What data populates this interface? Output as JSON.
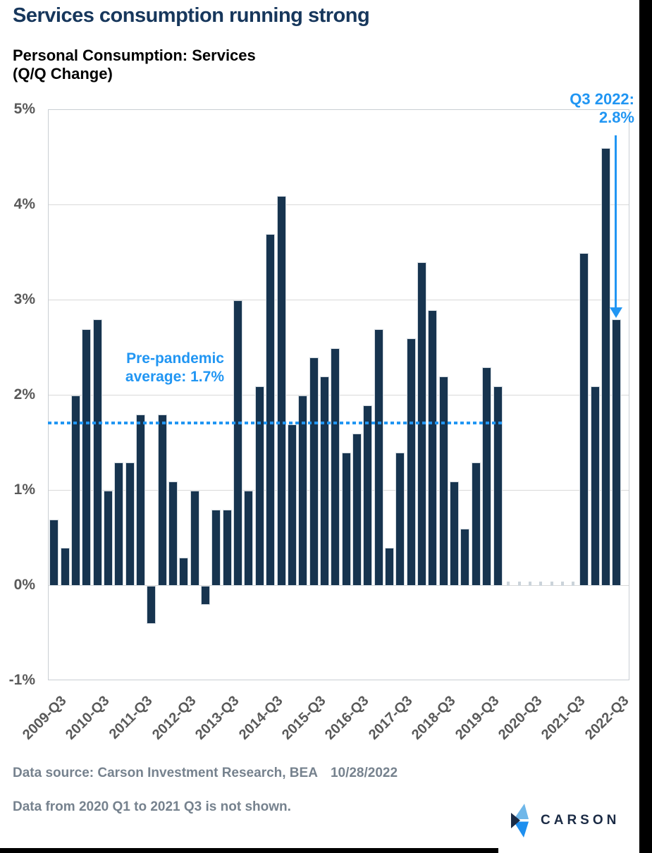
{
  "page": {
    "title": "Services consumption running strong",
    "subtitle": "Personal Consumption: Services\n(Q/Q Change)"
  },
  "colors": {
    "title_navy": "#17375C",
    "bar_fill": "#17344F",
    "accent_blue": "#2196F3",
    "axis_gray": "#595959",
    "gridline_gray": "#D9D9D9",
    "footer_gray": "#76828E",
    "logo_navy": "#1B2B45",
    "logo_light_blue": "#6FB7E9",
    "logo_bright_blue": "#1E8FEF",
    "background": "#FFFFFF"
  },
  "chart_data": {
    "type": "bar",
    "title": "Personal Consumption: Services (Q/Q Change)",
    "unit": "percent",
    "ylim": [
      -1,
      5
    ],
    "yticks": [
      5,
      4,
      3,
      2,
      1,
      0,
      -1
    ],
    "ytick_labels": [
      "5%",
      "4%",
      "3%",
      "2%",
      "1%",
      "0%",
      "-1%"
    ],
    "xtick_labels": [
      "2009-Q3",
      "2010-Q3",
      "2011-Q3",
      "2012-Q3",
      "2013-Q3",
      "2014-Q3",
      "2015-Q3",
      "2016-Q3",
      "2017-Q3",
      "2018-Q3",
      "2019-Q3",
      "2020-Q3",
      "2021-Q3",
      "2022-Q3"
    ],
    "grid": true,
    "bars": [
      {
        "quarter": "2009-Q3",
        "value": 0.7
      },
      {
        "quarter": "2009-Q4",
        "value": 0.4
      },
      {
        "quarter": "2010-Q1",
        "value": 2.0
      },
      {
        "quarter": "2010-Q2",
        "value": 2.7
      },
      {
        "quarter": "2010-Q3",
        "value": 2.8
      },
      {
        "quarter": "2010-Q4",
        "value": 1.0
      },
      {
        "quarter": "2011-Q1",
        "value": 1.3
      },
      {
        "quarter": "2011-Q2",
        "value": 1.3
      },
      {
        "quarter": "2011-Q3",
        "value": 1.8
      },
      {
        "quarter": "2011-Q4",
        "value": -0.4
      },
      {
        "quarter": "2012-Q1",
        "value": 1.8
      },
      {
        "quarter": "2012-Q2",
        "value": 1.1
      },
      {
        "quarter": "2012-Q3",
        "value": 0.3
      },
      {
        "quarter": "2012-Q4",
        "value": 1.0
      },
      {
        "quarter": "2013-Q1",
        "value": -0.2
      },
      {
        "quarter": "2013-Q2",
        "value": 0.8
      },
      {
        "quarter": "2013-Q3",
        "value": 0.8
      },
      {
        "quarter": "2013-Q4",
        "value": 3.0
      },
      {
        "quarter": "2014-Q1",
        "value": 1.0
      },
      {
        "quarter": "2014-Q2",
        "value": 2.1
      },
      {
        "quarter": "2014-Q3",
        "value": 3.7
      },
      {
        "quarter": "2014-Q4",
        "value": 4.1
      },
      {
        "quarter": "2015-Q1",
        "value": 1.7
      },
      {
        "quarter": "2015-Q2",
        "value": 2.0
      },
      {
        "quarter": "2015-Q3",
        "value": 2.4
      },
      {
        "quarter": "2015-Q4",
        "value": 2.2
      },
      {
        "quarter": "2016-Q1",
        "value": 2.5
      },
      {
        "quarter": "2016-Q2",
        "value": 1.4
      },
      {
        "quarter": "2016-Q3",
        "value": 1.6
      },
      {
        "quarter": "2016-Q4",
        "value": 1.9
      },
      {
        "quarter": "2017-Q1",
        "value": 2.7
      },
      {
        "quarter": "2017-Q2",
        "value": 0.4
      },
      {
        "quarter": "2017-Q3",
        "value": 1.4
      },
      {
        "quarter": "2017-Q4",
        "value": 2.6
      },
      {
        "quarter": "2018-Q1",
        "value": 3.4
      },
      {
        "quarter": "2018-Q2",
        "value": 2.9
      },
      {
        "quarter": "2018-Q3",
        "value": 2.2
      },
      {
        "quarter": "2018-Q4",
        "value": 1.1
      },
      {
        "quarter": "2019-Q1",
        "value": 0.6
      },
      {
        "quarter": "2019-Q2",
        "value": 1.3
      },
      {
        "quarter": "2019-Q3",
        "value": 2.3
      },
      {
        "quarter": "2019-Q4",
        "value": 2.1
      },
      {
        "quarter": "2020-Q1",
        "value": null
      },
      {
        "quarter": "2020-Q2",
        "value": null
      },
      {
        "quarter": "2020-Q3",
        "value": null
      },
      {
        "quarter": "2020-Q4",
        "value": null
      },
      {
        "quarter": "2021-Q1",
        "value": null
      },
      {
        "quarter": "2021-Q2",
        "value": null
      },
      {
        "quarter": "2021-Q3",
        "value": null
      },
      {
        "quarter": "2021-Q4",
        "value": 3.5
      },
      {
        "quarter": "2022-Q1",
        "value": 2.1
      },
      {
        "quarter": "2022-Q2",
        "value": 4.6
      },
      {
        "quarter": "2022-Q3",
        "value": 2.8
      }
    ],
    "hidden_range_note": "Data from 2020 Q1 to 2021 Q3 is not shown.",
    "reference_line": {
      "value": 1.7,
      "label": "Pre-pandemic\naverage: 1.7%"
    },
    "annotation": {
      "label": "Q3 2022:\n2.8%",
      "points_to_quarter": "2022-Q3",
      "points_to_value": 2.8
    }
  },
  "footer": {
    "source_label": "Data source: Carson Investment Research, BEA",
    "source_date": "10/28/2022",
    "note": "Data from 2020 Q1 to 2021 Q3 is not shown.",
    "logo_text": "CARSON"
  }
}
